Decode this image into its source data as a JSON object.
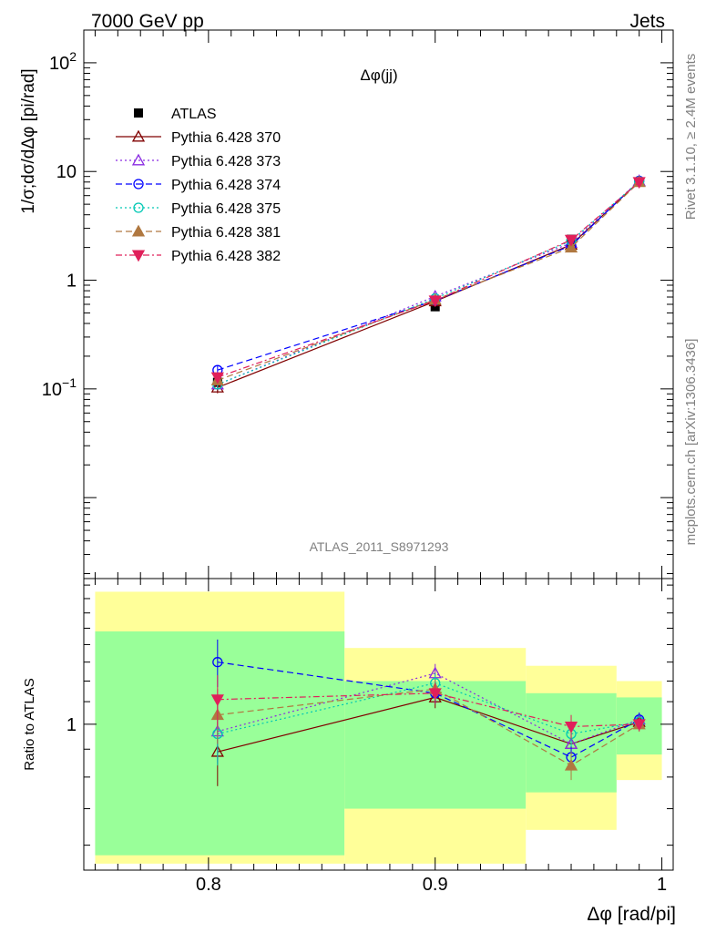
{
  "header": {
    "left": "7000 GeV pp",
    "right": "Jets"
  },
  "side_labels": {
    "rivet": "Rivet 3.1.10, ≥ 2.4M events",
    "mcplots": "mcplots.cern.ch [arXiv:1306.3436]"
  },
  "chart_data": [
    {
      "type": "line",
      "title": "Δφ(jj)",
      "xlabel": "Δφ [rad/pi]",
      "ylabel": "1/σ;dσ/dΔφ [pi/rad]",
      "yscale": "log",
      "xlim": [
        0.745,
        1.005
      ],
      "ylim": [
        0.0018,
        200
      ],
      "yticks": [
        {
          "value": 0.1,
          "label": "10^-1"
        },
        {
          "value": 1,
          "label": "1"
        },
        {
          "value": 10,
          "label": "10"
        },
        {
          "value": 100,
          "label": "10^2"
        }
      ],
      "watermark": "ATLAS_2011_S8971293",
      "legend_placement": "top-left",
      "x": [
        0.804,
        0.9,
        0.96,
        0.99
      ],
      "series": [
        {
          "name": "ATLAS",
          "color": "#000000",
          "marker": "square",
          "dash": "none",
          "values": [
            0.115,
            0.57,
            2.38,
            8.0
          ],
          "err": [
            0.02,
            0.05,
            0.2,
            0.4
          ]
        },
        {
          "name": "Pythia 6.428 370",
          "color": "#800000",
          "marker": "triangle-up-open",
          "dash": "solid",
          "values": [
            0.103,
            0.64,
            2.12,
            8.1
          ],
          "err": [
            0.012,
            0.04,
            0.1,
            0.3
          ]
        },
        {
          "name": "Pythia 6.428 373",
          "color": "#8a2be2",
          "marker": "triangle-up-open",
          "dash": "dotted",
          "values": [
            0.11,
            0.71,
            2.2,
            8.2
          ],
          "err": [
            0.01,
            0.04,
            0.1,
            0.3
          ]
        },
        {
          "name": "Pythia 6.428 374",
          "color": "#0000ff",
          "marker": "circle-open",
          "dash": "dashed",
          "values": [
            0.149,
            0.65,
            2.08,
            8.2
          ],
          "err": [
            0.015,
            0.04,
            0.1,
            0.3
          ]
        },
        {
          "name": "Pythia 6.428 375",
          "color": "#00c8b4",
          "marker": "circle-open",
          "dash": "dotted",
          "values": [
            0.11,
            0.68,
            2.3,
            8.1
          ],
          "err": [
            0.01,
            0.04,
            0.1,
            0.3
          ]
        },
        {
          "name": "Pythia 6.428 381",
          "color": "#b07840",
          "marker": "triangle-up-filled",
          "dash": "dashed",
          "values": [
            0.12,
            0.66,
            2.0,
            8.0
          ],
          "err": [
            0.01,
            0.04,
            0.1,
            0.3
          ]
        },
        {
          "name": "Pythia 6.428 382",
          "color": "#e0205a",
          "marker": "triangle-down-filled",
          "dash": "dashdot",
          "values": [
            0.128,
            0.65,
            2.35,
            8.0
          ],
          "err": [
            0.01,
            0.04,
            0.1,
            0.3
          ]
        }
      ]
    },
    {
      "type": "line",
      "ylabel": "Ratio to ATLAS",
      "xlabel": "Δφ [rad/pi]",
      "yscale": "log",
      "xlim": [
        0.745,
        1.005
      ],
      "ylim": [
        0.54,
        1.85
      ],
      "xticks": [
        {
          "value": 0.8,
          "label": "0.8"
        },
        {
          "value": 0.9,
          "label": "0.9"
        },
        {
          "value": 1.0,
          "label": "1"
        }
      ],
      "yticks": [
        {
          "value": 1,
          "label": "1"
        }
      ],
      "bands": [
        {
          "x0": 0.75,
          "x1": 0.86,
          "yellow": [
            0.555,
            1.75
          ],
          "green": [
            0.575,
            1.48
          ]
        },
        {
          "x0": 0.86,
          "x1": 0.94,
          "yellow": [
            0.555,
            1.38
          ],
          "green": [
            0.7,
            1.2
          ]
        },
        {
          "x0": 0.94,
          "x1": 0.98,
          "yellow": [
            0.64,
            1.28
          ],
          "green": [
            0.75,
            1.14
          ]
        },
        {
          "x0": 0.98,
          "x1": 1.0,
          "yellow": [
            0.79,
            1.2
          ],
          "green": [
            0.88,
            1.12
          ]
        }
      ],
      "x": [
        0.804,
        0.9,
        0.96,
        0.99
      ],
      "series": [
        {
          "name": "Pythia 6.428 370",
          "values": [
            0.89,
            1.12,
            0.92,
            1.01
          ],
          "err": [
            0.12,
            0.05,
            0.05,
            0.03
          ]
        },
        {
          "name": "Pythia 6.428 373",
          "values": [
            0.97,
            1.24,
            0.92,
            1.02
          ],
          "err": [
            0.12,
            0.05,
            0.05,
            0.03
          ]
        },
        {
          "name": "Pythia 6.428 374",
          "values": [
            1.3,
            1.14,
            0.87,
            1.02
          ],
          "err": [
            0.13,
            0.05,
            0.05,
            0.03
          ]
        },
        {
          "name": "Pythia 6.428 375",
          "values": [
            0.96,
            1.19,
            0.96,
            1.01
          ],
          "err": [
            0.12,
            0.05,
            0.05,
            0.03
          ]
        },
        {
          "name": "Pythia 6.428 381",
          "values": [
            1.04,
            1.16,
            0.84,
            1.0
          ],
          "err": [
            0.12,
            0.05,
            0.05,
            0.03
          ]
        },
        {
          "name": "Pythia 6.428 382",
          "values": [
            1.11,
            1.14,
            0.99,
            1.0
          ],
          "err": [
            0.12,
            0.05,
            0.05,
            0.03
          ]
        }
      ]
    }
  ]
}
